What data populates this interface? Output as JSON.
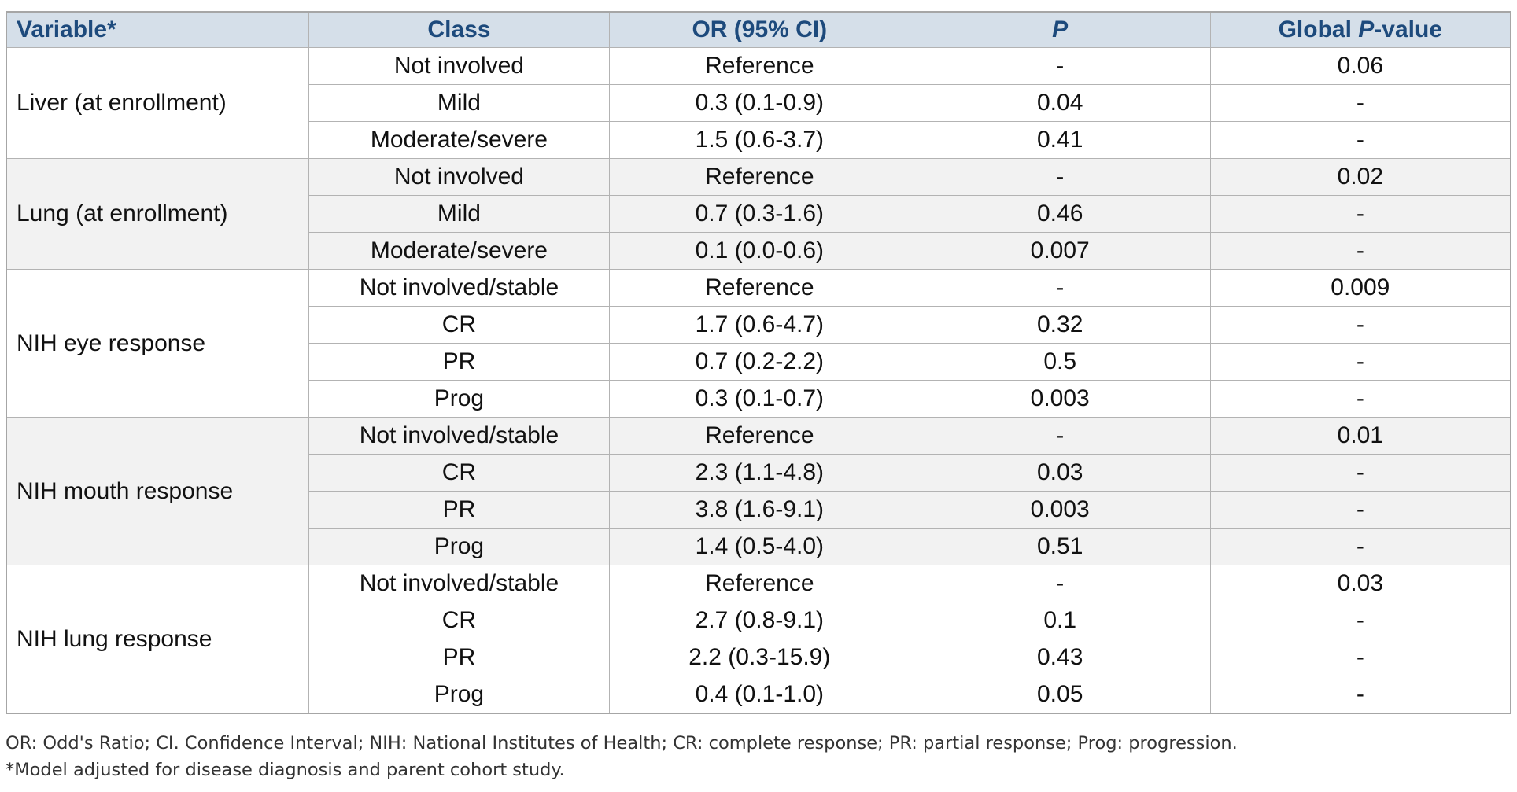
{
  "table": {
    "headers": [
      "Variable*",
      "Class",
      "OR (95% CI)",
      "P",
      "Global P-value"
    ],
    "groups": [
      {
        "variable": "Liver (at enrollment)",
        "rows": [
          [
            "Not involved",
            "Reference",
            "-",
            "0.06"
          ],
          [
            "Mild",
            "0.3 (0.1-0.9)",
            "0.04",
            "-"
          ],
          [
            "Moderate/severe",
            "1.5 (0.6-3.7)",
            "0.41",
            "-"
          ]
        ]
      },
      {
        "variable": "Lung (at enrollment)",
        "rows": [
          [
            "Not involved",
            "Reference",
            "-",
            "0.02"
          ],
          [
            "Mild",
            "0.7 (0.3-1.6)",
            "0.46",
            "-"
          ],
          [
            "Moderate/severe",
            "0.1 (0.0-0.6)",
            "0.007",
            "-"
          ]
        ]
      },
      {
        "variable": "NIH eye response",
        "rows": [
          [
            "Not involved/stable",
            "Reference",
            "-",
            "0.009"
          ],
          [
            "CR",
            "1.7 (0.6-4.7)",
            "0.32",
            "-"
          ],
          [
            "PR",
            "0.7 (0.2-2.2)",
            "0.5",
            "-"
          ],
          [
            "Prog",
            "0.3 (0.1-0.7)",
            "0.003",
            "-"
          ]
        ]
      },
      {
        "variable": "NIH mouth response",
        "rows": [
          [
            "Not involved/stable",
            "Reference",
            "-",
            "0.01"
          ],
          [
            "CR",
            "2.3 (1.1-4.8)",
            "0.03",
            "-"
          ],
          [
            "PR",
            "3.8 (1.6-9.1)",
            "0.003",
            "-"
          ],
          [
            "Prog",
            "1.4 (0.5-4.0)",
            "0.51",
            "-"
          ]
        ]
      },
      {
        "variable": "NIH lung response",
        "rows": [
          [
            "Not involved/stable",
            "Reference",
            "-",
            "0.03"
          ],
          [
            "CR",
            "2.7 (0.8-9.1)",
            "0.1",
            "-"
          ],
          [
            "PR",
            "2.2 (0.3-15.9)",
            "0.43",
            "-"
          ],
          [
            "Prog",
            "0.4 (0.1-1.0)",
            "0.05",
            "-"
          ]
        ]
      }
    ]
  },
  "footnotes": [
    "OR: Odd's Ratio; CI. Confidence Interval; NIH: National Institutes of Health; CR: complete response; PR: partial response; Prog: progression.",
    "*Model adjusted for disease diagnosis and parent cohort study."
  ],
  "colors": {
    "header_bg": "#d5dfe9",
    "header_text": "#1d4a7c",
    "shade": "#f2f2f2"
  }
}
